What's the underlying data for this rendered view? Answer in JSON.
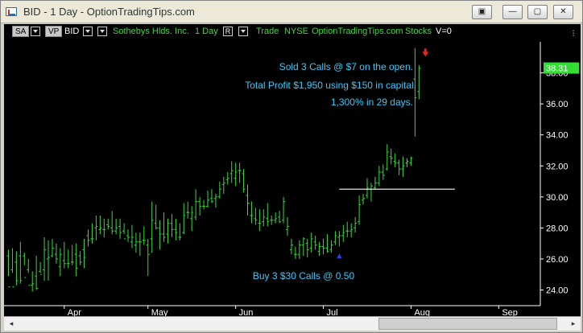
{
  "window": {
    "title": "BID - 1 Day - OptionTradingTips.com",
    "buttons": [
      "▣",
      "—",
      "▢",
      "✕"
    ]
  },
  "toolbar": {
    "sa_label": "SA",
    "vp_label": "VP",
    "symbol": "BID",
    "company": "Sothebys Hlds. Inc.",
    "interval": "1 Day",
    "r_icon": "R",
    "mode": "Trade",
    "exchange": "NYSE",
    "site": "OptionTradingTips.com",
    "category": "Stocks",
    "volume": "V=0"
  },
  "annotations": {
    "sold": "Sold 3 Calls @ $7 on the open.",
    "profit": "Total Profit $1,950 using $150 in capital.",
    "pct": "1,300% in 29 days.",
    "buy": "Buy 3 $30 Calls @ 0.50"
  },
  "colors": {
    "bars": "#33dd33",
    "annotation": "#33ccff",
    "price_label_bg": "#33dd33",
    "buy_arrow": "#2244ff",
    "sell_arrow": "#ee2222",
    "axis_text": "#ffffff"
  },
  "chart_data": {
    "type": "ohlc",
    "last_price_label": "38.31",
    "y_ticks": [
      "24.00",
      "26.00",
      "28.00",
      "30.00",
      "32.00",
      "34.00",
      "36.00",
      "38.00"
    ],
    "ylim": [
      23.3,
      40.0
    ],
    "x_ticks": [
      {
        "label": "Apr",
        "bar": 14
      },
      {
        "label": "May",
        "bar": 35
      },
      {
        "label": "Jun",
        "bar": 57
      },
      {
        "label": "Jul",
        "bar": 79
      },
      {
        "label": "Aug",
        "bar": 101
      },
      {
        "label": "Sep",
        "bar": 123
      }
    ],
    "xlim": [
      0,
      135
    ],
    "resistance_line": {
      "value": 30.5,
      "from_bar": 83,
      "to_bar": 112
    },
    "buy_marker": {
      "bar": 83,
      "value": 26.2
    },
    "sell_marker": {
      "bar": 104,
      "value": 39.2
    },
    "bars": [
      [
        0,
        26.6,
        24.9,
        26.2,
        24.2
      ],
      [
        1,
        26.7,
        25.1,
        25.3,
        24.2
      ],
      [
        2,
        26.5,
        24.3,
        25.8,
        24.6
      ],
      [
        3,
        27.1,
        24.4,
        26.2,
        24.6
      ],
      [
        4,
        26.4,
        25.6,
        26.2,
        24.8
      ],
      [
        5,
        26.0,
        25.1,
        25.3,
        24.3
      ],
      [
        6,
        25.2,
        23.9,
        24.3,
        24.4
      ],
      [
        7,
        26.2,
        24.0,
        24.9,
        24.1
      ],
      [
        8,
        25.8,
        25.1,
        25.2,
        25.0
      ],
      [
        9,
        27.4,
        24.6,
        25.3,
        26.6
      ],
      [
        10,
        27.2,
        24.6,
        26.0,
        26.1
      ],
      [
        11,
        27.3,
        26.1,
        26.2,
        26.7
      ],
      [
        12,
        27.0,
        25.7,
        26.3,
        26.0
      ],
      [
        13,
        26.7,
        24.9,
        25.5,
        26.3
      ],
      [
        14,
        27.1,
        25.4,
        25.9,
        25.7
      ],
      [
        15,
        26.6,
        25.4,
        25.7,
        25.7
      ],
      [
        16,
        26.9,
        25.6,
        25.8,
        25.8
      ],
      [
        17,
        27.0,
        24.9,
        26.3,
        25.4
      ],
      [
        18,
        26.5,
        25.6,
        26.2,
        25.8
      ],
      [
        19,
        27.3,
        25.4,
        26.6,
        26.1
      ],
      [
        20,
        27.9,
        26.8,
        27.5,
        27.2
      ],
      [
        21,
        28.3,
        27.0,
        27.3,
        27.3
      ],
      [
        22,
        28.8,
        27.2,
        28.0,
        28.1
      ],
      [
        23,
        28.8,
        27.6,
        27.9,
        28.0
      ],
      [
        24,
        28.6,
        27.4,
        27.9,
        27.9
      ],
      [
        25,
        28.6,
        27.9,
        28.2,
        28.1
      ],
      [
        26,
        29.1,
        27.6,
        28.0,
        27.8
      ],
      [
        27,
        28.6,
        27.6,
        27.8,
        28.0
      ],
      [
        28,
        28.6,
        27.3,
        28.1,
        27.7
      ],
      [
        29,
        28.3,
        27.6,
        27.8,
        27.3
      ],
      [
        30,
        27.9,
        27.1,
        27.5,
        27.4
      ],
      [
        31,
        28.2,
        26.7,
        27.1,
        27.4
      ],
      [
        32,
        27.7,
        26.4,
        26.9,
        27.1
      ],
      [
        33,
        27.7,
        26.2,
        27.1,
        27.1
      ],
      [
        34,
        28.1,
        26.9,
        27.2,
        27.2
      ],
      [
        35,
        27.3,
        24.9,
        26.9,
        26.3
      ],
      [
        36,
        29.7,
        26.4,
        27.3,
        28.5
      ],
      [
        37,
        29.5,
        27.9,
        28.3,
        28.0
      ],
      [
        38,
        28.5,
        26.6,
        28.0,
        27.6
      ],
      [
        39,
        29.0,
        27.1,
        27.6,
        27.4
      ],
      [
        40,
        28.6,
        27.0,
        27.6,
        28.3
      ],
      [
        41,
        28.9,
        27.4,
        28.3,
        27.9
      ],
      [
        42,
        28.6,
        27.2,
        27.9,
        27.7
      ],
      [
        43,
        28.3,
        27.2,
        27.4,
        27.4
      ],
      [
        44,
        29.6,
        27.6,
        27.7,
        28.8
      ],
      [
        45,
        29.7,
        28.6,
        29.0,
        29.0
      ],
      [
        46,
        29.4,
        27.8,
        28.6,
        29.0
      ],
      [
        47,
        30.5,
        28.5,
        28.7,
        29.7
      ],
      [
        48,
        30.0,
        28.8,
        29.7,
        29.4
      ],
      [
        49,
        29.8,
        29.2,
        29.4,
        29.4
      ],
      [
        50,
        30.4,
        29.3,
        29.4,
        29.8
      ],
      [
        51,
        30.5,
        29.6,
        29.9,
        29.7
      ],
      [
        52,
        30.2,
        29.3,
        29.9,
        30.0
      ],
      [
        53,
        31.0,
        29.9,
        30.0,
        30.5
      ],
      [
        54,
        31.3,
        30.2,
        30.8,
        30.9
      ],
      [
        55,
        31.6,
        30.8,
        31.1,
        31.2
      ],
      [
        56,
        32.3,
        30.9,
        31.5,
        31.7
      ],
      [
        57,
        32.2,
        30.7,
        31.2,
        31.6
      ],
      [
        58,
        32.2,
        30.9,
        31.7,
        31.7
      ],
      [
        59,
        31.8,
        30.3,
        31.5,
        30.5
      ],
      [
        60,
        30.8,
        28.8,
        30.1,
        29.6
      ],
      [
        61,
        29.7,
        28.3,
        28.8,
        28.8
      ],
      [
        62,
        29.3,
        28.2,
        28.6,
        28.5
      ],
      [
        63,
        29.2,
        27.8,
        28.3,
        28.3
      ],
      [
        64,
        29.2,
        28.1,
        28.4,
        28.7
      ],
      [
        65,
        29.6,
        28.1,
        28.6,
        28.4
      ],
      [
        66,
        28.8,
        28.2,
        28.5,
        28.5
      ],
      [
        67,
        29.0,
        28.3,
        28.5,
        28.6
      ],
      [
        68,
        29.1,
        28.3,
        28.7,
        28.4
      ],
      [
        69,
        30.0,
        28.3,
        28.5,
        29.7
      ],
      [
        70,
        28.7,
        27.5,
        27.9,
        28.1
      ],
      [
        71,
        27.3,
        26.3,
        26.6,
        26.9
      ],
      [
        72,
        26.8,
        26.0,
        26.3,
        26.3
      ],
      [
        73,
        27.2,
        26.0,
        26.3,
        26.9
      ],
      [
        74,
        27.4,
        26.2,
        26.9,
        27.3
      ],
      [
        75,
        27.3,
        26.1,
        27.0,
        26.6
      ],
      [
        76,
        27.7,
        26.4,
        26.7,
        27.3
      ],
      [
        77,
        27.5,
        26.6,
        27.1,
        26.9
      ],
      [
        78,
        27.1,
        26.2,
        26.5,
        26.8
      ],
      [
        79,
        27.3,
        26.3,
        26.8,
        26.7
      ],
      [
        80,
        27.6,
        26.4,
        26.7,
        26.5
      ],
      [
        81,
        27.2,
        26.4,
        26.6,
        26.9
      ],
      [
        82,
        27.8,
        26.9,
        27.1,
        27.5
      ],
      [
        83,
        27.8,
        26.8,
        27.4,
        27.5
      ],
      [
        84,
        28.2,
        27.1,
        27.5,
        27.7
      ],
      [
        85,
        28.4,
        27.4,
        27.8,
        27.8
      ],
      [
        86,
        28.3,
        27.4,
        27.8,
        27.9
      ],
      [
        87,
        28.7,
        27.7,
        28.0,
        28.3
      ],
      [
        88,
        30.1,
        28.2,
        28.4,
        29.5
      ],
      [
        89,
        30.2,
        29.5,
        29.8,
        29.9
      ],
      [
        90,
        31.2,
        29.9,
        30.1,
        30.6
      ],
      [
        91,
        30.9,
        29.7,
        30.5,
        30.7
      ],
      [
        92,
        31.3,
        30.5,
        30.6,
        30.9
      ],
      [
        93,
        32.0,
        30.7,
        30.9,
        31.6
      ],
      [
        94,
        32.1,
        31.1,
        31.6,
        31.4
      ],
      [
        95,
        33.4,
        31.7,
        31.8,
        32.9
      ],
      [
        96,
        33.1,
        32.1,
        32.6,
        32.5
      ],
      [
        97,
        32.8,
        31.9,
        32.3,
        32.2
      ],
      [
        98,
        32.4,
        31.4,
        32.2,
        31.8
      ],
      [
        99,
        32.6,
        31.3,
        31.8,
        32.0
      ],
      [
        100,
        32.5,
        31.9,
        32.2,
        32.3
      ],
      [
        101,
        32.6,
        32.0,
        32.2,
        32.5
      ],
      [
        102,
        39.6,
        33.9,
        37.6,
        36.4
      ],
      [
        103,
        38.5,
        36.3,
        36.8,
        38.3
      ]
    ]
  }
}
